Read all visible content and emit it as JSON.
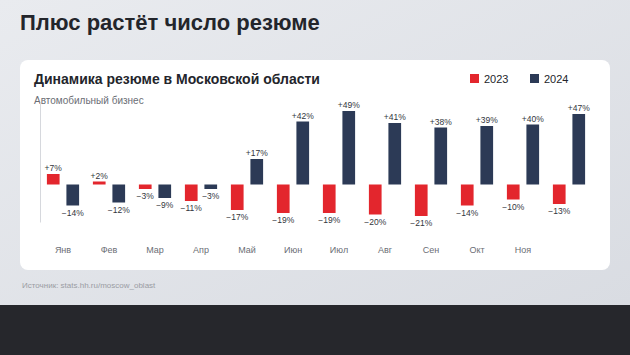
{
  "slide_title": "Плюс растёт число резюме",
  "chart_data": {
    "type": "bar",
    "title": "Динамика резюме в Московской области",
    "subtitle": "Автомобильный бизнес",
    "source": "Источник: stats.hh.ru/moscow_oblast",
    "categories": [
      "Янв",
      "Фев",
      "Мар",
      "Апр",
      "Май",
      "Июн",
      "Июл",
      "Авг",
      "Сен",
      "Окт",
      "Ноя",
      null
    ],
    "series": [
      {
        "name": "2023",
        "color": "#e3262d",
        "values": [
          7,
          2,
          -3,
          -11,
          -17,
          -19,
          -19,
          -20,
          -21,
          -14,
          -10,
          -13
        ],
        "value_labels": [
          "+7%",
          "+2%",
          "−3%",
          "−11%",
          "−17%",
          "−19%",
          "−19%",
          "−20%",
          "−21%",
          "−14%",
          "−10%",
          "−13%"
        ]
      },
      {
        "name": "2024",
        "color": "#2c3a56",
        "values": [
          -14,
          -12,
          -9,
          -3,
          17,
          42,
          49,
          41,
          38,
          39,
          40,
          47
        ],
        "value_labels": [
          "−14%",
          "−12%",
          "−9%",
          "−3%",
          "+17%",
          "+42%",
          "+49%",
          "+41%",
          "+38%",
          "+39%",
          "+40%",
          "+47%"
        ]
      }
    ],
    "ylim": [
      -25,
      55
    ],
    "grid": false,
    "legend": "top-right",
    "data_labels": true,
    "tick_labels": "x"
  }
}
